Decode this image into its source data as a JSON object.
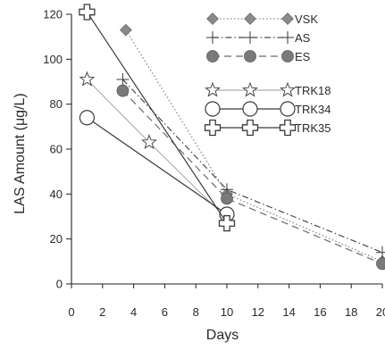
{
  "chart_data": {
    "type": "line",
    "xlabel": "Days",
    "ylabel": "LAS Amount (μg/L)",
    "xlim": [
      0,
      20
    ],
    "ylim": [
      0,
      120
    ],
    "x_ticks": [
      0,
      2,
      4,
      6,
      8,
      10,
      12,
      14,
      16,
      18,
      20
    ],
    "y_ticks": [
      0,
      20,
      40,
      60,
      80,
      100,
      120
    ],
    "grid": false,
    "legend_position": "top-right",
    "series": [
      {
        "name": "VSK",
        "marker": "diamond",
        "line_style": "dotted",
        "color": "#8a8a8a",
        "points": [
          {
            "x": 3.5,
            "y": 113
          },
          {
            "x": 10,
            "y": 40
          },
          {
            "x": 20,
            "y": 10
          }
        ]
      },
      {
        "name": "AS",
        "marker": "plus",
        "line_style": "dash-dot",
        "color": "#4a4a4a",
        "points": [
          {
            "x": 3.3,
            "y": 91
          },
          {
            "x": 10,
            "y": 42
          },
          {
            "x": 20,
            "y": 14
          }
        ]
      },
      {
        "name": "ES",
        "marker": "filled-circle",
        "line_style": "dashed",
        "color": "#6a6a6a",
        "points": [
          {
            "x": 3.3,
            "y": 86
          },
          {
            "x": 10,
            "y": 38
          },
          {
            "x": 20,
            "y": 9
          }
        ]
      },
      {
        "name": "TRK18",
        "marker": "star",
        "line_style": "solid-thin",
        "color": "#9a9a9a",
        "points": [
          {
            "x": 1,
            "y": 91
          },
          {
            "x": 5,
            "y": 63
          },
          {
            "x": 10,
            "y": 29
          }
        ]
      },
      {
        "name": "TRK34",
        "marker": "open-circle",
        "line_style": "solid",
        "color": "#3a3a3a",
        "points": [
          {
            "x": 1,
            "y": 74
          },
          {
            "x": 10,
            "y": 31
          }
        ]
      },
      {
        "name": "TRK35",
        "marker": "cross",
        "line_style": "solid",
        "color": "#3a3a3a",
        "points": [
          {
            "x": 1,
            "y": 121
          },
          {
            "x": 10,
            "y": 27
          }
        ]
      }
    ]
  }
}
